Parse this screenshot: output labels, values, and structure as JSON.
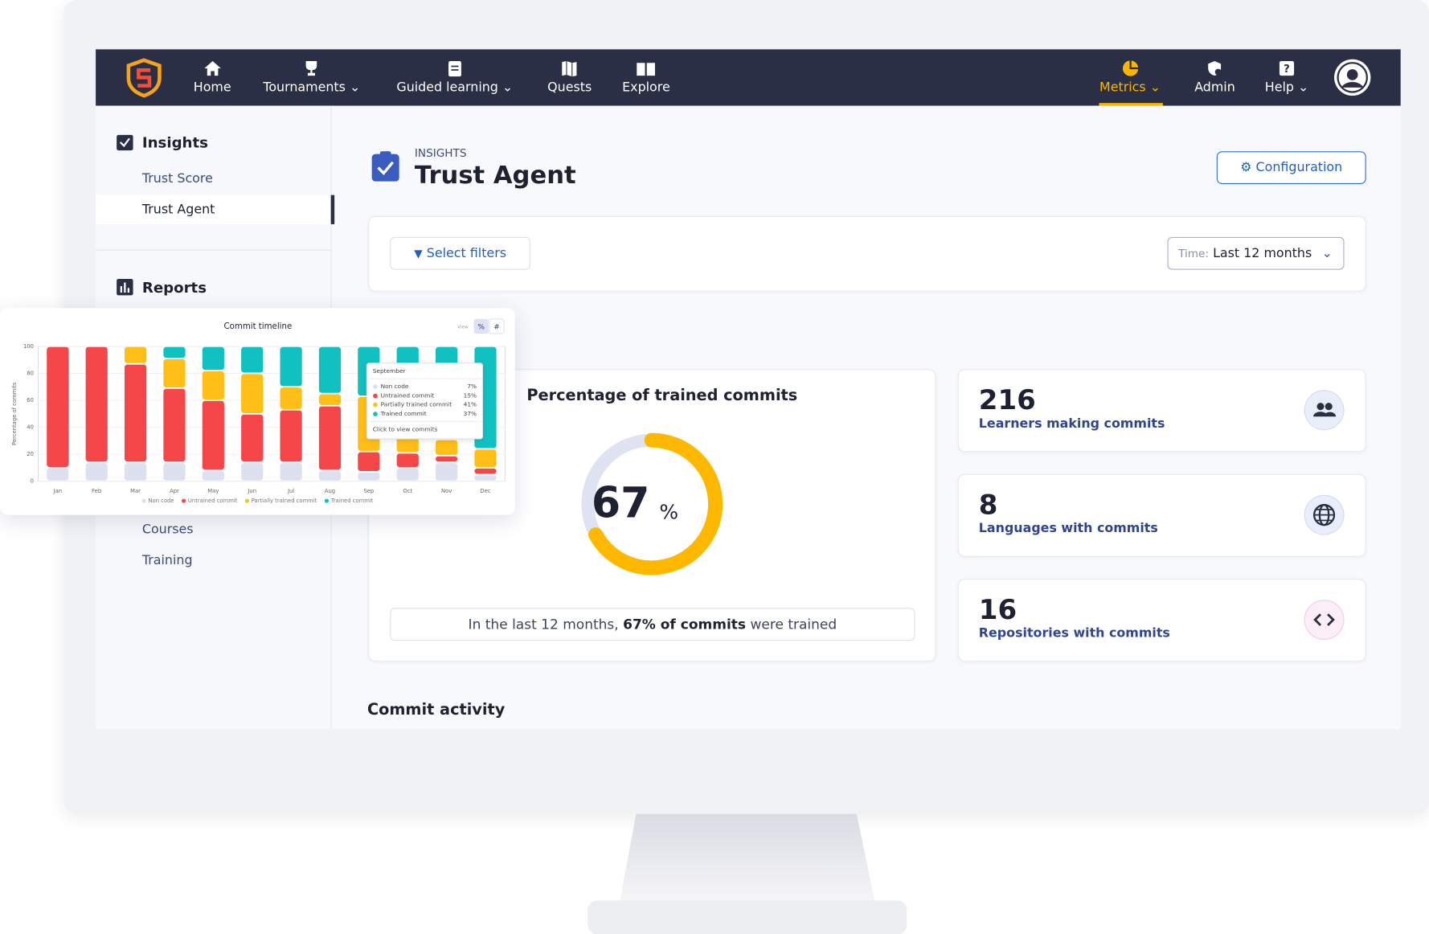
{
  "nav": {
    "items": [
      "Home",
      "Tournaments",
      "Guided learning",
      "Quests",
      "Explore",
      "Metrics",
      "Admin",
      "Help"
    ]
  },
  "sidebar": {
    "sections": [
      {
        "title": "Insights",
        "items": [
          "Trust Score",
          "Trust Agent"
        ]
      },
      {
        "title": "Reports",
        "items": [
          "Courses",
          "Training"
        ]
      }
    ]
  },
  "header": {
    "eyebrow": "INSIGHTS",
    "title": "Trust Agent",
    "button": "Configuration"
  },
  "filters": {
    "button": "Select filters",
    "time_label": "Time:",
    "time_value": "Last 12 months"
  },
  "trained_card": {
    "title": "Percentage of trained commits",
    "value": 67,
    "unit": "%",
    "summary": [
      "In the last 12 months, ",
      "67% of commits",
      " were trained"
    ]
  },
  "stats": [
    {
      "value": 216,
      "label": "Learners making commits"
    },
    {
      "value": 8,
      "label": "Languages with commits"
    },
    {
      "value": 16,
      "label": "Repositories with commits"
    }
  ],
  "section": "Commit activity",
  "chart_data": {
    "type": "bar",
    "stacked": true,
    "title": "Commit timeline",
    "ylabel": "Percentage of commits",
    "view_label": "View",
    "toggles": [
      "%",
      "#"
    ],
    "categories": [
      "Jan",
      "Feb",
      "Mar",
      "Apr",
      "May",
      "Jun",
      "Jul",
      "Aug",
      "Sep",
      "Oct",
      "Nov",
      "Dec"
    ],
    "series": [
      {
        "name": "Non code",
        "color": "#dde0ee",
        "values": [
          10,
          14,
          14,
          14,
          8,
          14,
          14,
          8,
          7,
          10,
          14,
          5
        ]
      },
      {
        "name": "Untrained commit",
        "color": "#f5474a",
        "values": [
          90,
          86,
          73,
          55,
          52,
          36,
          39,
          48,
          15,
          11,
          5,
          5
        ]
      },
      {
        "name": "Partially trained commit",
        "color": "#ffbf17",
        "values": [
          0,
          0,
          13,
          22,
          22,
          30,
          17,
          9,
          41,
          12,
          12,
          14
        ]
      },
      {
        "name": "Trained commit",
        "color": "#11c0c0",
        "values": [
          0,
          0,
          0,
          9,
          18,
          20,
          30,
          35,
          37,
          67,
          69,
          76
        ]
      }
    ],
    "ylim": [
      0,
      100
    ],
    "yticks": [
      0,
      20,
      40,
      60,
      80,
      100
    ],
    "grid": true,
    "tooltip": {
      "title": "September",
      "labels": [
        "7%",
        "15%",
        "41%",
        "37%"
      ],
      "footer": "Click to view commits"
    }
  }
}
